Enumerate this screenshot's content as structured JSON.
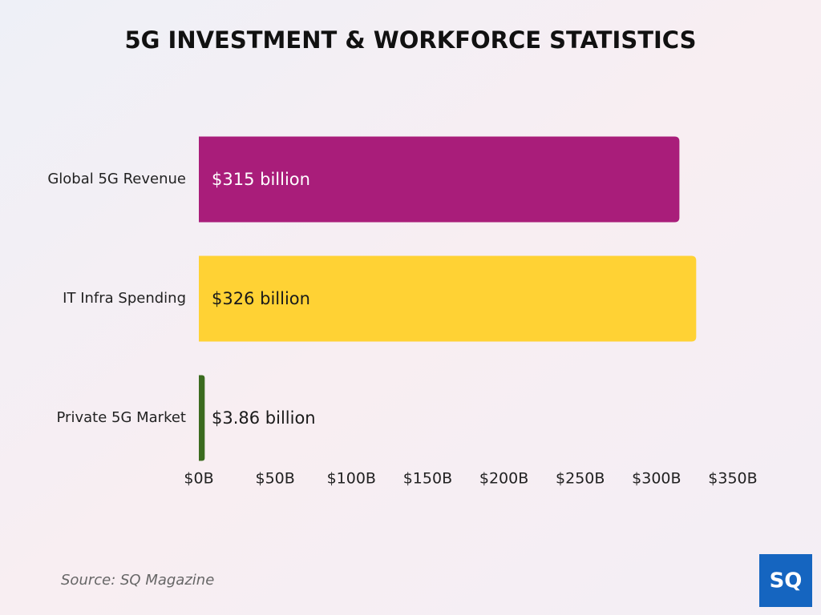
{
  "chart_data": {
    "type": "hbar",
    "title": "5G INVESTMENT & WORKFORCE STATISTICS",
    "categories": [
      "Global 5G Revenue",
      "IT Infra Spending",
      "Private 5G Market"
    ],
    "values": [
      315,
      326,
      3.86
    ],
    "value_labels": [
      "$315 billion",
      "$326 billion",
      "$3.86 billion"
    ],
    "colors": [
      "#a91d7a",
      "#ffd234",
      "#3b6b1f"
    ],
    "value_label_colors": [
      "#ffffff",
      "#1a1a1a",
      "#1a1a1a"
    ],
    "xlim": [
      0,
      350
    ],
    "xticks": [
      {
        "value": 0,
        "label": "$0B"
      },
      {
        "value": 50,
        "label": "$50B"
      },
      {
        "value": 100,
        "label": "$100B"
      },
      {
        "value": 150,
        "label": "$150B"
      },
      {
        "value": 200,
        "label": "$200B"
      },
      {
        "value": 250,
        "label": "$250B"
      },
      {
        "value": 300,
        "label": "$300B"
      },
      {
        "value": 350,
        "label": "$350B"
      }
    ],
    "source": "Source: SQ Magazine",
    "logo": "SQ"
  }
}
